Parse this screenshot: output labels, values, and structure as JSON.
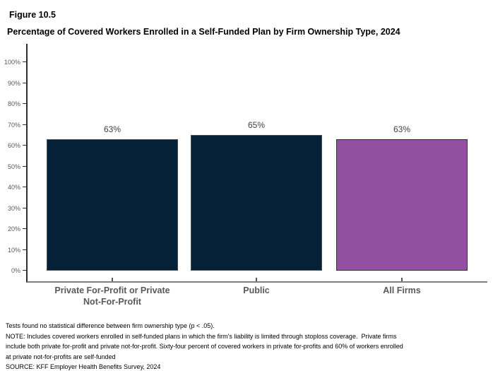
{
  "figure": {
    "label": "Figure 10.5",
    "title": "Percentage of Covered Workers Enrolled in a Self-Funded Plan by Firm Ownership Type, 2024"
  },
  "chart_data": {
    "type": "bar",
    "title": "Percentage of Covered Workers Enrolled in a Self-Funded Plan by Firm Ownership Type, 2024",
    "categories": [
      "Private For-Profit or Private Not-For-Profit",
      "Public",
      "All Firms"
    ],
    "values": [
      63,
      65,
      63
    ],
    "value_labels": [
      "63%",
      "65%",
      "63%"
    ],
    "xtick_display_lines": [
      "Private For-Profit or Private\nNot-For-Profit",
      "Public",
      "All Firms"
    ],
    "xlabel": "",
    "ylabel": "",
    "ylim": [
      0,
      100
    ],
    "ytick_step": 10,
    "ytick_labels": [
      "0%",
      "10%",
      "20%",
      "30%",
      "40%",
      "50%",
      "60%",
      "70%",
      "80%",
      "90%",
      "100%"
    ],
    "grid": false,
    "legend_position": "none",
    "bar_colors": [
      "#052137",
      "#052137",
      "#9251A0"
    ],
    "bar_border_colors": [
      "#4a4f54",
      "#4a4f54",
      "#333333"
    ]
  },
  "colors": {
    "navy": "#052137",
    "purple": "#9251A0",
    "axis_line": "#2E2E2E",
    "baseline": "#7F7F7F",
    "tick_label": "#595959",
    "category_label": "#595959",
    "value_label": "#404040"
  },
  "footnotes": {
    "lines": [
      "Tests found no statistical difference between firm ownership type (p < .05).",
      "NOTE: Includes covered workers enrolled in self-funded plans in which the firm's liability is limited through stoploss coverage.  Private firms",
      "include both private for-profit and private not-for-profit. Sixty-four percent of covered workers in private for-profits and 60% of workers enrolled",
      "at private not-for-profits are self-funded",
      "SOURCE: KFF Employer Health Benefits Survey, 2024"
    ]
  }
}
